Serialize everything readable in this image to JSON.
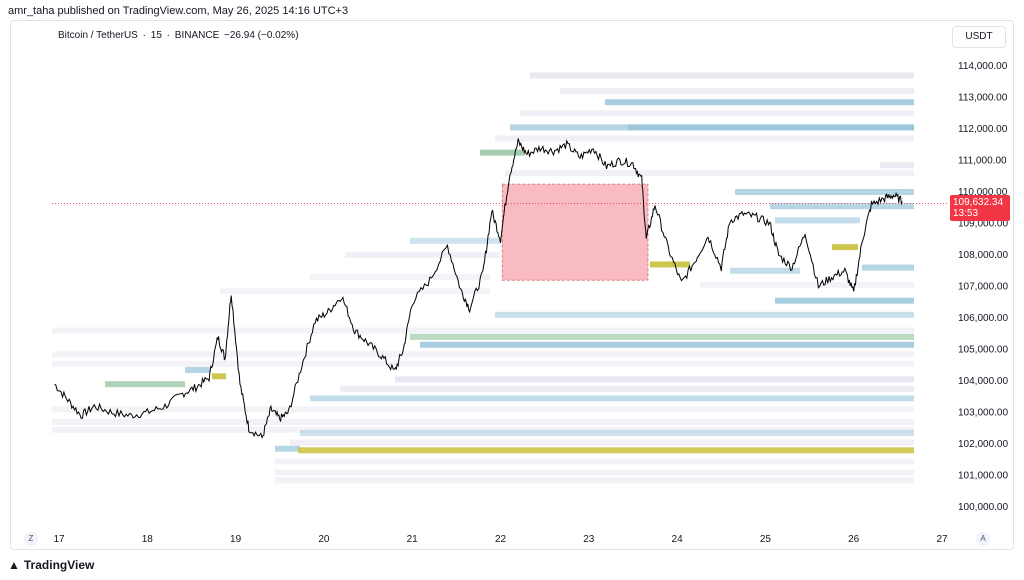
{
  "caption": "amr_taha published on TradingView.com, May 26, 2025 14:16 UTC+3",
  "symbol": {
    "name": "Bitcoin / TetherUS",
    "interval": "15",
    "exchange": "BINANCE",
    "change": "−26.94 (−0.02%)"
  },
  "currency": "USDT",
  "price_tag": {
    "price": "109,632.34",
    "countdown": "13:53"
  },
  "footer": {
    "brand": "TradingView"
  },
  "buttons": {
    "left": "Z",
    "right": "A"
  },
  "colors": {
    "last_price": "#f23645",
    "candle": "#000000",
    "highlight_box": "#f8a5b0",
    "volume_profile_gray": "#d6d3e6",
    "volume_profile_blue": "#86b9d4",
    "volume_profile_yellow": "#c8c23a",
    "volume_profile_green": "#8fbf9a"
  },
  "chart_data": {
    "type": "line",
    "title": "",
    "x_ticks": [
      "17",
      "18",
      "19",
      "20",
      "21",
      "22",
      "23",
      "24",
      "25",
      "26",
      "27"
    ],
    "y_ticks": [
      "114,000.00",
      "113,000.00",
      "112,000.00",
      "111,000.00",
      "110,000.00",
      "109,000.00",
      "108,000.00",
      "107,000.00",
      "106,000.00",
      "105,000.00",
      "104,000.00",
      "103,000.00",
      "102,000.00",
      "101,000.00",
      "100,000.00"
    ],
    "ylim": [
      100000,
      114000
    ],
    "xlim": [
      17,
      27
    ],
    "last_price": 109632.34,
    "series": [
      {
        "x": [
          16.95,
          17.1,
          17.25,
          17.4,
          17.6,
          17.8,
          18.0,
          18.2,
          18.4,
          18.55,
          18.7,
          18.8,
          18.88,
          18.95,
          19.05,
          19.15,
          19.3,
          19.4,
          19.5,
          19.6,
          19.75,
          19.9,
          20.05,
          20.2,
          20.35,
          20.5,
          20.65,
          20.8,
          20.9,
          21.0,
          21.2,
          21.4,
          21.55,
          21.65,
          21.8,
          21.9,
          22.0,
          22.1,
          22.2,
          22.3,
          22.45,
          22.6,
          22.75,
          22.9,
          23.05,
          23.2,
          23.35,
          23.5,
          23.6,
          23.65,
          23.75,
          23.9,
          24.05,
          24.2,
          24.35,
          24.5,
          24.6,
          24.75,
          24.9,
          25.05,
          25.15,
          25.3,
          25.45,
          25.6,
          25.75,
          25.9,
          26.0,
          26.1,
          26.2,
          26.35,
          26.45,
          26.55
        ],
        "y": [
          103900,
          103400,
          102900,
          103200,
          103000,
          102900,
          103000,
          103200,
          103600,
          103800,
          104100,
          105400,
          104700,
          106800,
          103900,
          102500,
          102200,
          103100,
          102800,
          103000,
          104500,
          105900,
          106200,
          106700,
          105600,
          105200,
          104800,
          104300,
          105000,
          106500,
          107200,
          108300,
          106900,
          106300,
          107400,
          109400,
          108500,
          110500,
          111600,
          111200,
          111400,
          111300,
          111500,
          111100,
          111400,
          110800,
          111000,
          110900,
          110400,
          108500,
          109600,
          108200,
          107100,
          107800,
          108600,
          107600,
          109100,
          109300,
          109200,
          109000,
          108000,
          107600,
          108700,
          107000,
          107300,
          107500,
          106800,
          108500,
          109600,
          109800,
          109900,
          109700
        ]
      }
    ],
    "highlight_box": {
      "x0": 22.02,
      "x1": 23.67,
      "y0": 107200,
      "y1": 110250
    }
  }
}
